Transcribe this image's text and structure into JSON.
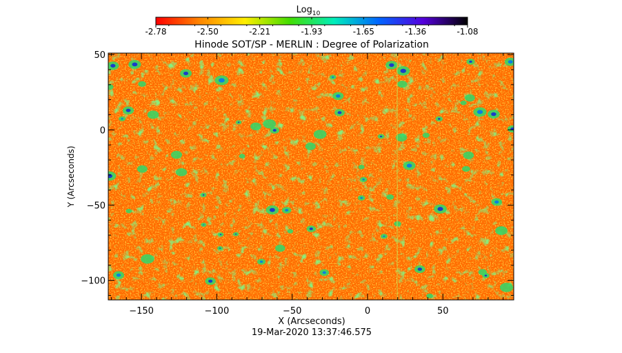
{
  "chart_data": {
    "type": "heatmap",
    "title": "Hinode SOT/SP - MERLIN : Degree of Polarization",
    "xlabel": "X (Arcseconds)",
    "ylabel": "Y (Arcseconds)",
    "timestamp": "19-Mar-2020 13:37:46.575",
    "colorbar": {
      "label_main": "Log",
      "label_sub": "10",
      "ticks": [
        "-2.78",
        "-2.50",
        "-2.21",
        "-1.93",
        "-1.65",
        "-1.36",
        "-1.08"
      ],
      "range": [
        -2.78,
        -1.08
      ],
      "colormap": [
        "#ff0000",
        "#ff8800",
        "#ffee00",
        "#44dd00",
        "#00eebb",
        "#0066ff",
        "#5500dd",
        "#000000"
      ]
    },
    "xlim": [
      -172,
      97
    ],
    "ylim": [
      -113,
      51
    ],
    "xticks": [
      {
        "value": -150,
        "label": "−150"
      },
      {
        "value": -100,
        "label": "−100"
      },
      {
        "value": -50,
        "label": "−50"
      },
      {
        "value": 0,
        "label": "0"
      },
      {
        "value": 50,
        "label": "50"
      }
    ],
    "yticks": [
      {
        "value": 50,
        "label": "50"
      },
      {
        "value": 0,
        "label": "0"
      },
      {
        "value": -50,
        "label": "−50"
      },
      {
        "value": -100,
        "label": "−100"
      }
    ],
    "map_appearance": "mostly orange (log10 approx -2.6) with green/yellow network and scattered blue patches",
    "grid": false,
    "legend": "none"
  }
}
